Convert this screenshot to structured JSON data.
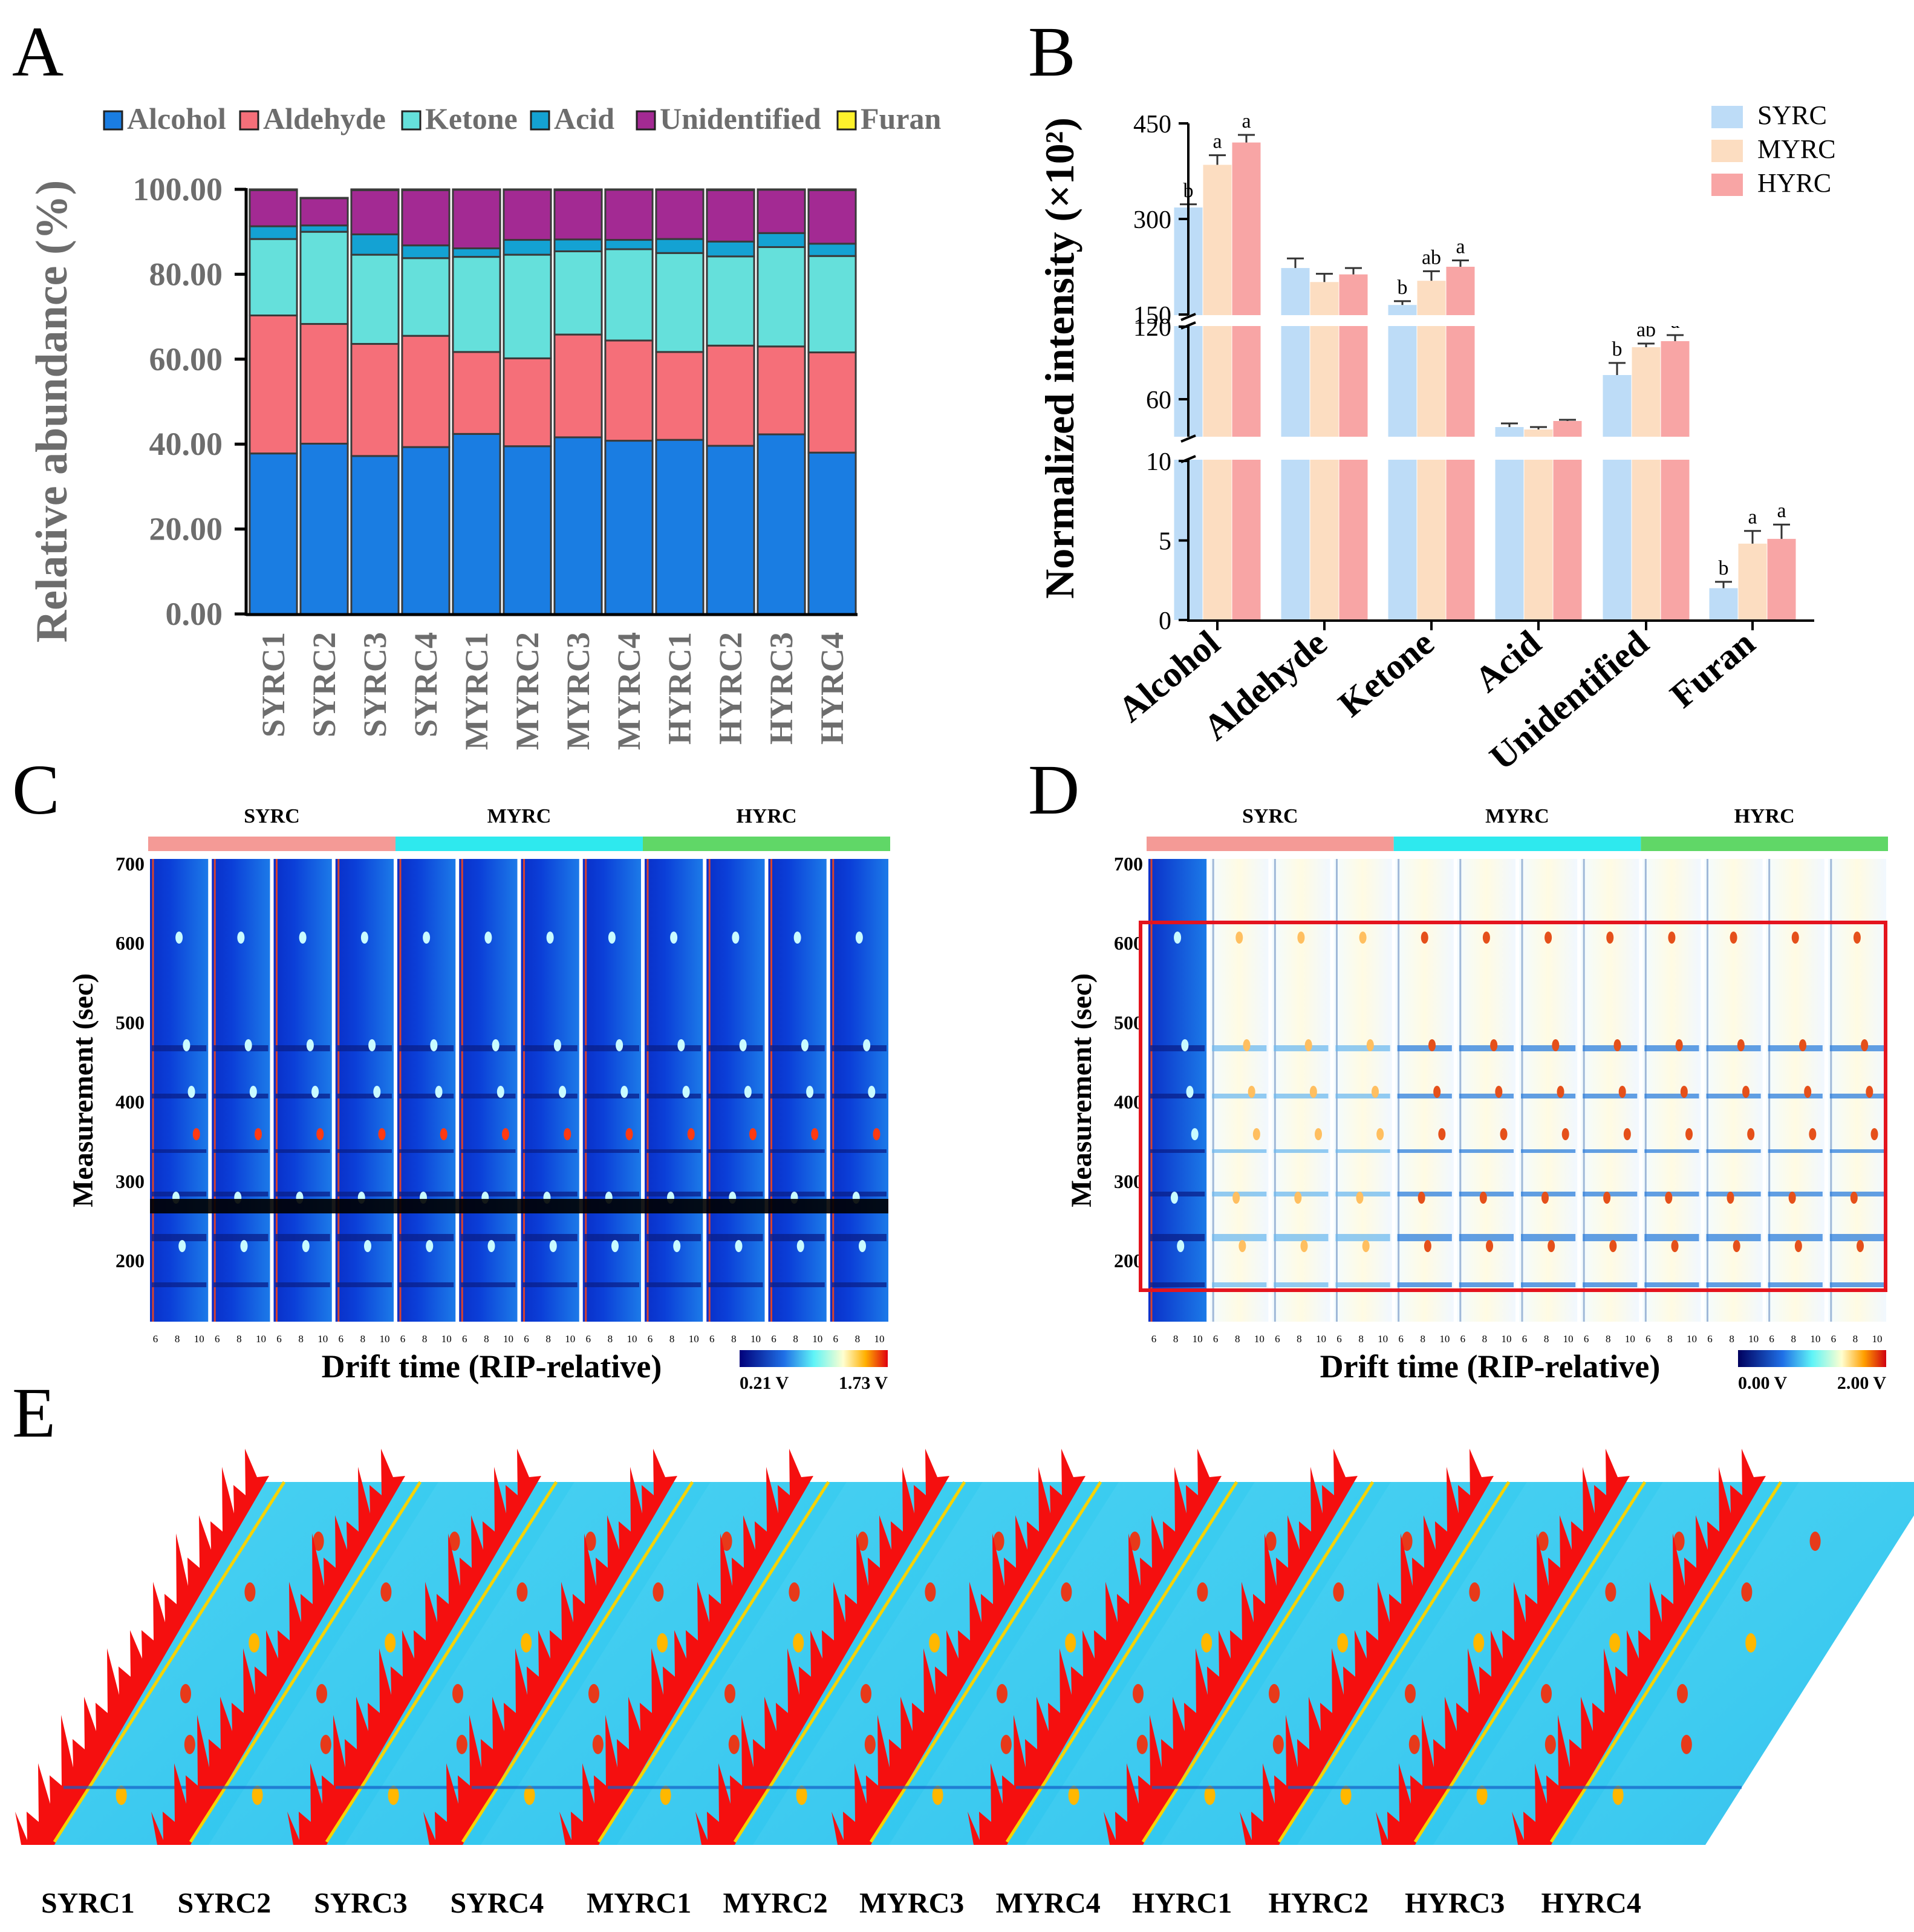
{
  "panels": {
    "A": "A",
    "B": "B",
    "C": "C",
    "D": "D",
    "E": "E"
  },
  "colors": {
    "Alcohol": "#1a7de2",
    "Aldehyde": "#f56f79",
    "Ketone": "#65e0db",
    "Acid": "#14a2d3",
    "Unidentified": "#a32a93",
    "Furan": "#fdf12c",
    "SYRC": "#bddcf7",
    "MYRC": "#fcddc1",
    "HYRC": "#f8a5a5",
    "syrc_bar": "#f49a96",
    "myrc_bar": "#2ee9ee",
    "hyrc_bar": "#60d767"
  },
  "chart_data": [
    {
      "panel": "A",
      "type": "bar",
      "stacked": true,
      "title": "",
      "xlabel": "",
      "ylabel": "Relative abundance  (%)",
      "ylim": [
        0,
        100
      ],
      "yticks": [
        "0.00",
        "20.00",
        "40.00",
        "60.00",
        "80.00",
        "100.00"
      ],
      "categories": [
        "SYRC1",
        "SYRC2",
        "SYRC3",
        "SYRC4",
        "MYRC1",
        "MYRC2",
        "MYRC3",
        "MYRC4",
        "HYRC1",
        "HYRC2",
        "HYRC3",
        "HYRC4"
      ],
      "series": [
        {
          "name": "Alcohol",
          "values": [
            37.8,
            40.1,
            37.2,
            39.3,
            42.4,
            39.5,
            41.6,
            40.8,
            41.0,
            39.6,
            42.3,
            38.0
          ]
        },
        {
          "name": "Aldehyde",
          "values": [
            32.5,
            28.2,
            26.4,
            26.2,
            19.3,
            20.7,
            24.2,
            23.6,
            20.7,
            23.6,
            20.7,
            23.6
          ]
        },
        {
          "name": "Ketone",
          "values": [
            18.0,
            21.7,
            21.0,
            18.3,
            22.4,
            24.4,
            19.6,
            21.5,
            23.3,
            21.0,
            23.4,
            22.7
          ]
        },
        {
          "name": "Acid",
          "values": [
            3.0,
            1.5,
            4.8,
            3.0,
            2.0,
            3.5,
            2.8,
            2.2,
            3.3,
            3.5,
            3.3,
            2.9
          ]
        },
        {
          "name": "Unidentified",
          "values": [
            8.5,
            6.4,
            10.4,
            13.0,
            13.8,
            11.8,
            11.6,
            11.8,
            11.6,
            12.1,
            10.2,
            12.6
          ]
        },
        {
          "name": "Furan",
          "values": [
            0.2,
            0.1,
            0.2,
            0.2,
            0.1,
            0.1,
            0.2,
            0.1,
            0.1,
            0.2,
            0.1,
            0.2
          ]
        }
      ],
      "legend": [
        "Alcohol",
        "Aldehyde",
        "Ketone",
        "Acid",
        "Unidentified",
        "Furan"
      ],
      "legend_position": "top"
    },
    {
      "panel": "B",
      "type": "bar",
      "title": "",
      "ylabel": "Normalized intensity (×10²)",
      "axis_breaks": true,
      "segments": [
        {
          "range": [
            0,
            10
          ],
          "ticks": [
            "0",
            "5",
            "10"
          ]
        },
        {
          "range": [
            30,
            120
          ],
          "ticks": [
            "60",
            "120"
          ]
        },
        {
          "range": [
            150,
            450
          ],
          "ticks": [
            "150",
            "300",
            "450"
          ]
        }
      ],
      "categories": [
        "Alcohol",
        "Aldehyde",
        "Ketone",
        "Acid",
        "Unidentified",
        "Furan"
      ],
      "series": [
        {
          "name": "SYRC",
          "values": [
            318,
            223,
            165,
            37,
            80,
            2.0
          ],
          "errors": [
            5,
            15,
            6,
            3,
            10,
            0.4
          ],
          "letters": [
            "b",
            "",
            "b",
            "",
            "b",
            "b"
          ]
        },
        {
          "name": "MYRC",
          "values": [
            385,
            201,
            203,
            35,
            103,
            4.8
          ],
          "errors": [
            15,
            13,
            15,
            2,
            3,
            0.8
          ],
          "letters": [
            "a",
            "",
            "ab",
            "",
            "ab",
            "a"
          ]
        },
        {
          "name": "HYRC",
          "values": [
            420,
            213,
            225,
            42,
            108,
            5.1
          ],
          "errors": [
            12,
            10,
            10,
            1,
            5,
            0.9
          ],
          "letters": [
            "a",
            "",
            "a",
            "",
            "a",
            "a"
          ]
        }
      ],
      "legend": [
        "SYRC",
        "MYRC",
        "HYRC"
      ],
      "legend_position": "top-right"
    }
  ],
  "heatmaps": {
    "group_labels": [
      "SYRC",
      "MYRC",
      "HYRC"
    ],
    "c_yticks": [
      "700",
      "600",
      "500",
      "400",
      "300",
      "200"
    ],
    "d_yticks": [
      "700",
      "600",
      "500",
      "400",
      "300",
      "200"
    ],
    "xtick_labels": [
      "6",
      "8",
      "10"
    ],
    "xlabel": "Drift time (RIP-relative)",
    "ylabel": "Measurement (sec)",
    "c_scale": [
      "0.21 V",
      "1.73 V"
    ],
    "d_scale": [
      "0.00 V",
      "2.00 V"
    ]
  },
  "panel_e": {
    "samples": [
      "SYRC1",
      "SYRC2",
      "SYRC3",
      "SYRC4",
      "MYRC1",
      "MYRC2",
      "MYRC3",
      "MYRC4",
      "HYRC1",
      "HYRC2",
      "HYRC3",
      "HYRC4"
    ]
  }
}
